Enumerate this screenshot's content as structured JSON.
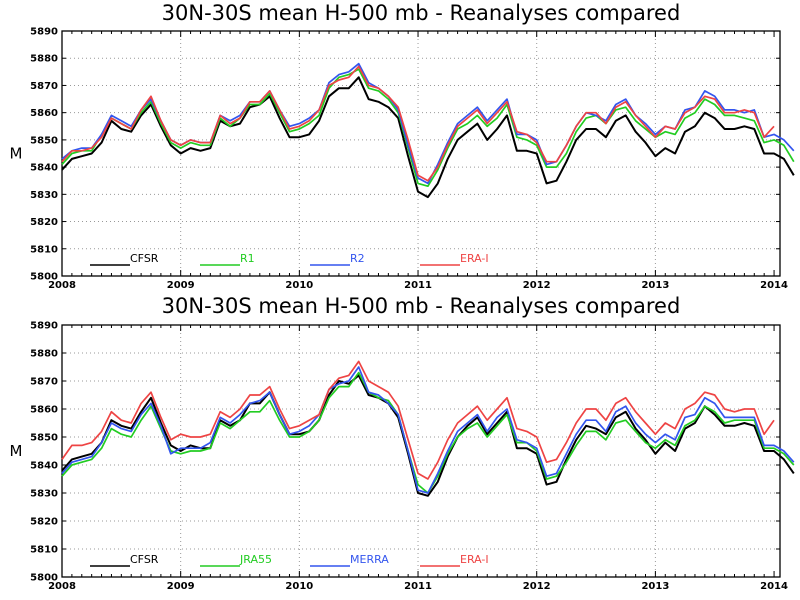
{
  "chart_data": [
    {
      "type": "line",
      "title": "30N-30S mean H-500 mb - Reanalyses compared",
      "xlabel": "",
      "ylabel": "M",
      "xlim": [
        2008,
        2014.05
      ],
      "ylim": [
        5800,
        5890
      ],
      "x_ticks": [
        "2008",
        "2009",
        "2010",
        "2011",
        "2012",
        "2013",
        "2014"
      ],
      "y_ticks": [
        "5800",
        "5810",
        "5820",
        "5830",
        "5840",
        "5850",
        "5860",
        "5870",
        "5880",
        "5890"
      ],
      "grid": true,
      "legend_position": "bottom-left",
      "start_year": 2008.0,
      "step": 0.08333,
      "series": [
        {
          "name": "CFSR",
          "color": "#000000",
          "values": [
            5839,
            5843,
            5844,
            5845,
            5849,
            5857,
            5854,
            5853,
            5859,
            5863,
            5855,
            5848,
            5845,
            5847,
            5846,
            5847,
            5857,
            5855,
            5856,
            5862,
            5863,
            5866,
            5858,
            5851,
            5851,
            5852,
            5857,
            5866,
            5869,
            5869,
            5873,
            5865,
            5864,
            5862,
            5858,
            5844,
            5831,
            5829,
            5834,
            5843,
            5850,
            5853,
            5856,
            5850,
            5854,
            5859,
            5846,
            5846,
            5845,
            5834,
            5835,
            5842,
            5850,
            5854,
            5854,
            5851,
            5857,
            5859,
            5853,
            5849,
            5844,
            5847,
            5845,
            5853,
            5855,
            5860,
            5858,
            5854,
            5854,
            5855,
            5854,
            5845,
            5845,
            5843,
            5837
          ]
        },
        {
          "name": "R1",
          "color": "#22cc22",
          "values": [
            5841,
            5845,
            5846,
            5846,
            5852,
            5858,
            5856,
            5854,
            5860,
            5864,
            5856,
            5849,
            5847,
            5849,
            5848,
            5848,
            5858,
            5855,
            5858,
            5863,
            5863,
            5867,
            5860,
            5853,
            5854,
            5856,
            5859,
            5869,
            5873,
            5874,
            5876,
            5869,
            5868,
            5865,
            5860,
            5847,
            5834,
            5833,
            5839,
            5847,
            5854,
            5856,
            5859,
            5855,
            5858,
            5863,
            5851,
            5850,
            5848,
            5840,
            5840,
            5845,
            5853,
            5858,
            5859,
            5856,
            5861,
            5862,
            5857,
            5854,
            5851,
            5853,
            5852,
            5858,
            5860,
            5865,
            5863,
            5859,
            5859,
            5858,
            5857,
            5849,
            5850,
            5848,
            5842
          ]
        },
        {
          "name": "R2",
          "color": "#3355ee",
          "values": [
            5843,
            5846,
            5847,
            5847,
            5852,
            5859,
            5857,
            5855,
            5861,
            5865,
            5857,
            5850,
            5848,
            5850,
            5849,
            5849,
            5859,
            5857,
            5859,
            5864,
            5864,
            5868,
            5861,
            5855,
            5856,
            5858,
            5861,
            5871,
            5874,
            5875,
            5878,
            5871,
            5869,
            5866,
            5861,
            5848,
            5836,
            5834,
            5841,
            5849,
            5856,
            5859,
            5862,
            5857,
            5861,
            5865,
            5852,
            5852,
            5850,
            5841,
            5842,
            5848,
            5855,
            5860,
            5859,
            5857,
            5863,
            5865,
            5859,
            5856,
            5852,
            5855,
            5854,
            5861,
            5862,
            5868,
            5866,
            5861,
            5861,
            5860,
            5861,
            5851,
            5852,
            5850,
            5846
          ]
        },
        {
          "name": "ERA-I",
          "color": "#ee4444",
          "values": [
            5842,
            5846,
            5846,
            5847,
            5851,
            5858,
            5856,
            5854,
            5861,
            5866,
            5857,
            5850,
            5848,
            5850,
            5849,
            5849,
            5859,
            5856,
            5858,
            5864,
            5864,
            5868,
            5861,
            5854,
            5855,
            5857,
            5861,
            5870,
            5872,
            5873,
            5877,
            5870,
            5869,
            5866,
            5862,
            5850,
            5837,
            5835,
            5840,
            5848,
            5855,
            5858,
            5861,
            5856,
            5860,
            5864,
            5853,
            5852,
            5849,
            5842,
            5842,
            5848,
            5855,
            5860,
            5860,
            5856,
            5862,
            5864,
            5859,
            5855,
            5851,
            5855,
            5854,
            5860,
            5862,
            5866,
            5865,
            5860,
            5860,
            5861,
            5860,
            5851,
            5855
          ]
        }
      ]
    },
    {
      "type": "line",
      "title": "30N-30S mean H-500 mb - Reanalyses compared",
      "xlabel": "",
      "ylabel": "M",
      "xlim": [
        2008,
        2014.05
      ],
      "ylim": [
        5800,
        5890
      ],
      "x_ticks": [
        "2008",
        "2009",
        "2010",
        "2011",
        "2012",
        "2013",
        "2014"
      ],
      "y_ticks": [
        "5800",
        "5810",
        "5820",
        "5830",
        "5840",
        "5850",
        "5860",
        "5870",
        "5880",
        "5890"
      ],
      "grid": true,
      "legend_position": "bottom-left",
      "start_year": 2008.0,
      "step": 0.08333,
      "series": [
        {
          "name": "CFSR",
          "color": "#000000",
          "values": [
            5838,
            5842,
            5843,
            5844,
            5848,
            5856,
            5854,
            5853,
            5859,
            5864,
            5855,
            5847,
            5845,
            5847,
            5846,
            5846,
            5856,
            5854,
            5856,
            5862,
            5862,
            5866,
            5858,
            5851,
            5851,
            5852,
            5856,
            5865,
            5870,
            5869,
            5872,
            5865,
            5864,
            5862,
            5857,
            5844,
            5830,
            5829,
            5834,
            5843,
            5850,
            5854,
            5857,
            5851,
            5855,
            5859,
            5846,
            5846,
            5844,
            5833,
            5834,
            5842,
            5849,
            5854,
            5853,
            5851,
            5857,
            5859,
            5853,
            5849,
            5844,
            5848,
            5845,
            5853,
            5855,
            5861,
            5858,
            5854,
            5854,
            5855,
            5854,
            5845,
            5845,
            5842,
            5837
          ]
        },
        {
          "name": "JRA55",
          "color": "#22cc22",
          "values": [
            5836,
            5840,
            5841,
            5842,
            5846,
            5853,
            5851,
            5850,
            5856,
            5861,
            5853,
            5845,
            5844,
            5845,
            5845,
            5846,
            5855,
            5853,
            5856,
            5859,
            5859,
            5863,
            5856,
            5850,
            5850,
            5852,
            5856,
            5864,
            5868,
            5868,
            5873,
            5866,
            5864,
            5863,
            5858,
            5845,
            5833,
            5830,
            5836,
            5844,
            5850,
            5853,
            5855,
            5850,
            5854,
            5858,
            5848,
            5848,
            5845,
            5835,
            5836,
            5841,
            5847,
            5852,
            5852,
            5849,
            5855,
            5856,
            5852,
            5848,
            5846,
            5849,
            5847,
            5854,
            5856,
            5861,
            5859,
            5855,
            5856,
            5856,
            5856,
            5846,
            5846,
            5844,
            5840
          ]
        },
        {
          "name": "MERRA",
          "color": "#3355ee",
          "values": [
            5837,
            5841,
            5842,
            5843,
            5848,
            5855,
            5853,
            5852,
            5858,
            5862,
            5854,
            5844,
            5846,
            5846,
            5846,
            5848,
            5857,
            5855,
            5858,
            5862,
            5863,
            5866,
            5858,
            5851,
            5852,
            5854,
            5858,
            5867,
            5869,
            5870,
            5875,
            5866,
            5865,
            5862,
            5858,
            5845,
            5831,
            5830,
            5837,
            5845,
            5852,
            5855,
            5858,
            5852,
            5857,
            5860,
            5849,
            5848,
            5846,
            5836,
            5837,
            5844,
            5851,
            5856,
            5856,
            5852,
            5859,
            5861,
            5855,
            5851,
            5848,
            5851,
            5849,
            5857,
            5858,
            5864,
            5862,
            5857,
            5857,
            5857,
            5857,
            5847,
            5847,
            5845,
            5841
          ]
        },
        {
          "name": "ERA-I",
          "color": "#ee4444",
          "values": [
            5842,
            5847,
            5847,
            5848,
            5852,
            5859,
            5856,
            5855,
            5862,
            5866,
            5857,
            5849,
            5851,
            5850,
            5850,
            5851,
            5859,
            5857,
            5860,
            5865,
            5865,
            5868,
            5860,
            5853,
            5854,
            5856,
            5858,
            5867,
            5871,
            5872,
            5877,
            5870,
            5868,
            5866,
            5861,
            5849,
            5837,
            5835,
            5841,
            5849,
            5855,
            5858,
            5861,
            5856,
            5860,
            5864,
            5853,
            5852,
            5850,
            5841,
            5842,
            5848,
            5855,
            5860,
            5860,
            5856,
            5862,
            5864,
            5859,
            5855,
            5851,
            5855,
            5853,
            5860,
            5862,
            5866,
            5865,
            5860,
            5859,
            5860,
            5860,
            5851,
            5856
          ]
        }
      ]
    }
  ]
}
